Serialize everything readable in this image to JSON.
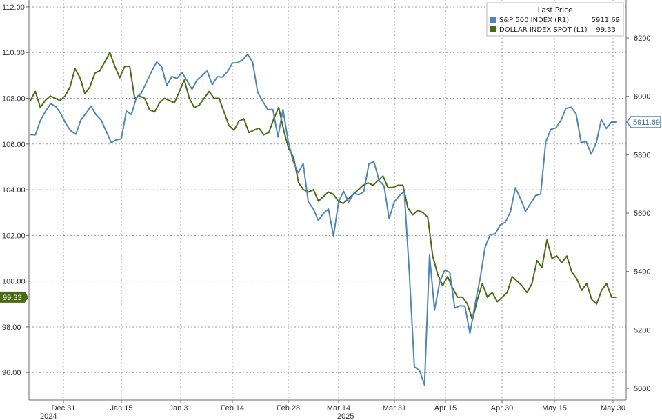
{
  "chart_data": {
    "type": "line",
    "title": "",
    "x_tick_labels": [
      "Dec 31",
      "Jan 15",
      "Jan 31",
      "Feb 14",
      "Feb 28",
      "Mar 14",
      "Mar 31",
      "Apr 15",
      "Apr 30",
      "May 15",
      "May 30"
    ],
    "x_year_labels": [
      "2024",
      "2025"
    ],
    "y_left_ticks": [
      "112.00",
      "110.00",
      "108.00",
      "106.00",
      "104.00",
      "102.00",
      "100.00",
      "98.00",
      "96.00"
    ],
    "y_right_ticks": [
      "6200",
      "6000",
      "5800",
      "5600",
      "5400",
      "5200",
      "5000"
    ],
    "ylim_left": [
      94.8,
      112.3
    ],
    "ylim_right": [
      4960,
      6330
    ],
    "grid": true,
    "legend": {
      "title": "Last Price",
      "placement": "top-right",
      "entries": [
        {
          "name": "S&P 500 INDEX  (R1)",
          "value": "5911.69"
        },
        {
          "name": "DOLLAR INDEX SPOT  (L1)",
          "value": "99.33"
        }
      ]
    },
    "last_value_tags": {
      "right": "5911.69",
      "left": "99.33"
    },
    "series": [
      {
        "name": "S&P 500 INDEX (R1)",
        "axis": "right",
        "color": "#4f86b8",
        "values": [
          5869,
          5868,
          5918,
          5949,
          5975,
          5966,
          5942,
          5907,
          5882,
          5870,
          5919,
          5942,
          5967,
          5937,
          5919,
          5881,
          5842,
          5851,
          5854,
          5950,
          5938,
          5997,
          6012,
          6049,
          6086,
          6118,
          6101,
          6037,
          6068,
          6061,
          6082,
          6054,
          6024,
          6057,
          6071,
          6087,
          6040,
          6067,
          6066,
          6084,
          6114,
          6115,
          6125,
          6144,
          6117,
          6013,
          5983,
          5955,
          5955,
          5861,
          5955,
          5849,
          5778,
          5738,
          5770,
          5639,
          5615,
          5575,
          5599,
          5614,
          5522,
          5639,
          5675,
          5638,
          5668,
          5663,
          5673,
          5768,
          5776,
          5712,
          5694,
          5581,
          5638,
          5659,
          5675,
          5396,
          5074,
          5062,
          5012,
          5456,
          5268,
          5363,
          5405,
          5397,
          5275,
          5283,
          5282,
          5188,
          5287,
          5375,
          5484,
          5526,
          5529,
          5560,
          5569,
          5604,
          5687,
          5650,
          5606,
          5633,
          5660,
          5665,
          5844,
          5887,
          5892,
          5917,
          5959,
          5963,
          5940,
          5842,
          5845,
          5802,
          5841,
          5921,
          5890,
          5912,
          5912
        ]
      },
      {
        "name": "DOLLAR INDEX SPOT (L1)",
        "axis": "left",
        "color": "#4a6b14",
        "values": [
          107.9,
          108.3,
          107.6,
          107.9,
          108.1,
          108.0,
          107.9,
          108.1,
          108.5,
          109.3,
          108.9,
          108.2,
          108.5,
          109.1,
          109.2,
          109.6,
          110.0,
          109.4,
          108.9,
          109.4,
          109.4,
          108.0,
          108.1,
          108.0,
          107.5,
          107.4,
          107.8,
          108.0,
          107.9,
          107.8,
          108.3,
          108.8,
          108.0,
          107.6,
          107.7,
          108.0,
          108.3,
          108.0,
          108.0,
          107.4,
          106.8,
          106.6,
          107.0,
          107.1,
          106.5,
          106.6,
          106.7,
          106.4,
          106.5,
          107.1,
          107.6,
          106.6,
          105.8,
          105.4,
          104.3,
          104.0,
          103.9,
          104.0,
          103.5,
          103.7,
          103.9,
          103.8,
          103.5,
          103.4,
          103.6,
          103.8,
          104.0,
          104.2,
          104.3,
          104.2,
          104.4,
          104.6,
          104.1,
          104.1,
          104.2,
          104.2,
          103.2,
          102.9,
          103.1,
          103.0,
          102.8,
          101.1,
          100.3,
          99.8,
          100.2,
          99.7,
          99.3,
          99.3,
          99.0,
          98.3,
          99.2,
          99.9,
          99.3,
          99.5,
          99.1,
          99.3,
          99.5,
          100.2,
          100.0,
          99.8,
          99.5,
          99.9,
          100.9,
          100.6,
          101.8,
          101.0,
          101.1,
          100.8,
          101.1,
          100.4,
          100.1,
          99.6,
          99.9,
          99.2,
          99.0,
          99.6,
          99.9,
          99.3,
          99.3
        ]
      }
    ]
  }
}
